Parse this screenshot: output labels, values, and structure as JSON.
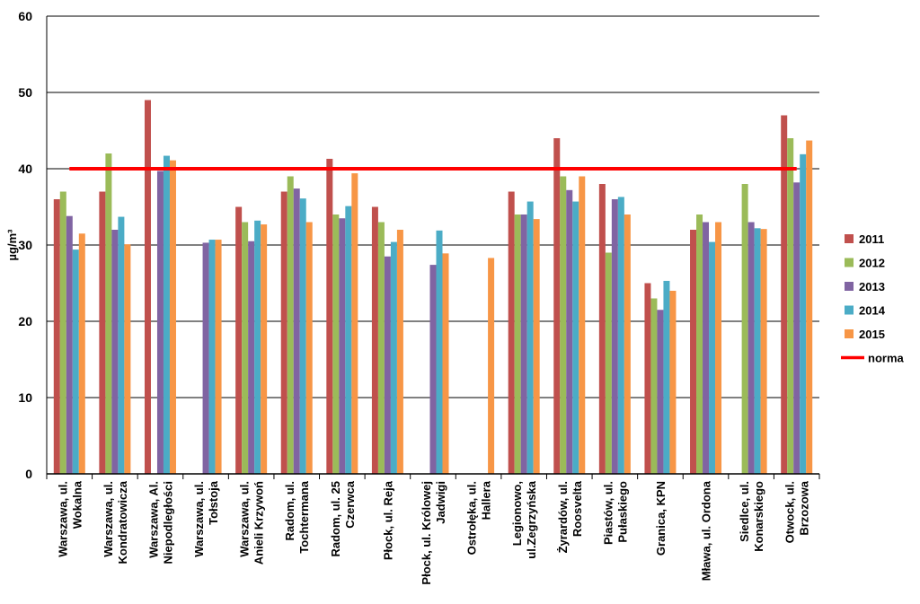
{
  "chart_data": {
    "type": "bar",
    "ylabel": "µg/m³",
    "ylim": [
      0,
      60
    ],
    "yticks": [
      0,
      10,
      20,
      30,
      40,
      50,
      60
    ],
    "grid": true,
    "legend_position": "right",
    "categories": [
      [
        "Warszawa, ul.",
        "Wokalna"
      ],
      [
        "Warszawa, ul.",
        "Kondratowicza"
      ],
      [
        "Warszawa, Al.",
        "Niepodległości"
      ],
      [
        "Warszawa, ul.",
        "Tołstoja"
      ],
      [
        "Warszawa, ul.",
        "Anieli Krzywoń"
      ],
      [
        "Radom, ul.",
        "Tochtermana"
      ],
      [
        "Radom, ul. 25",
        "Czerwca"
      ],
      [
        "Płock, ul. Reja"
      ],
      [
        "Płock, ul. Królowej",
        "Jadwigi"
      ],
      [
        "Ostrołęka, ul.",
        "Hallera"
      ],
      [
        "Legionowo,",
        "ul.Zegrzyńska"
      ],
      [
        "Żyrardów, ul.",
        "Roosvelta"
      ],
      [
        "Piastów, ul.",
        "Pułaskiego"
      ],
      [
        "Granica, KPN"
      ],
      [
        "Mława, ul. Ordona"
      ],
      [
        "Siedlce, ul.",
        "Konarskiego"
      ],
      [
        "Otwock, ul.",
        "Brzozowa"
      ]
    ],
    "series": [
      {
        "name": "2011",
        "color": "#C0504D",
        "values": [
          36,
          37,
          49,
          null,
          35,
          37,
          41.3,
          35,
          null,
          null,
          37,
          44,
          38,
          25,
          32,
          null,
          47
        ]
      },
      {
        "name": "2012",
        "color": "#9BBB59",
        "values": [
          37,
          42,
          null,
          null,
          33,
          39,
          34,
          33,
          null,
          null,
          34,
          39,
          29,
          23,
          34,
          38,
          44
        ]
      },
      {
        "name": "2013",
        "color": "#8064A2",
        "values": [
          33.8,
          32,
          39.7,
          30.3,
          30.5,
          37.4,
          33.5,
          28.5,
          27.4,
          null,
          34,
          37.2,
          36,
          21.5,
          33,
          33,
          38.2
        ]
      },
      {
        "name": "2014",
        "color": "#4BACC6",
        "values": [
          29.4,
          33.7,
          41.7,
          30.7,
          33.2,
          36.1,
          35.1,
          30.4,
          31.9,
          null,
          35.7,
          35.7,
          36.3,
          25.3,
          30.4,
          32.2,
          41.9
        ]
      },
      {
        "name": "2015",
        "color": "#F79646",
        "values": [
          31.5,
          30.1,
          41.1,
          30.7,
          32.7,
          33,
          39.4,
          32,
          28.9,
          28.3,
          33.4,
          39,
          34,
          24,
          33,
          32.1,
          43.7
        ]
      }
    ],
    "norm": {
      "name": "norma",
      "value": 40,
      "color": "#FF0000"
    }
  }
}
